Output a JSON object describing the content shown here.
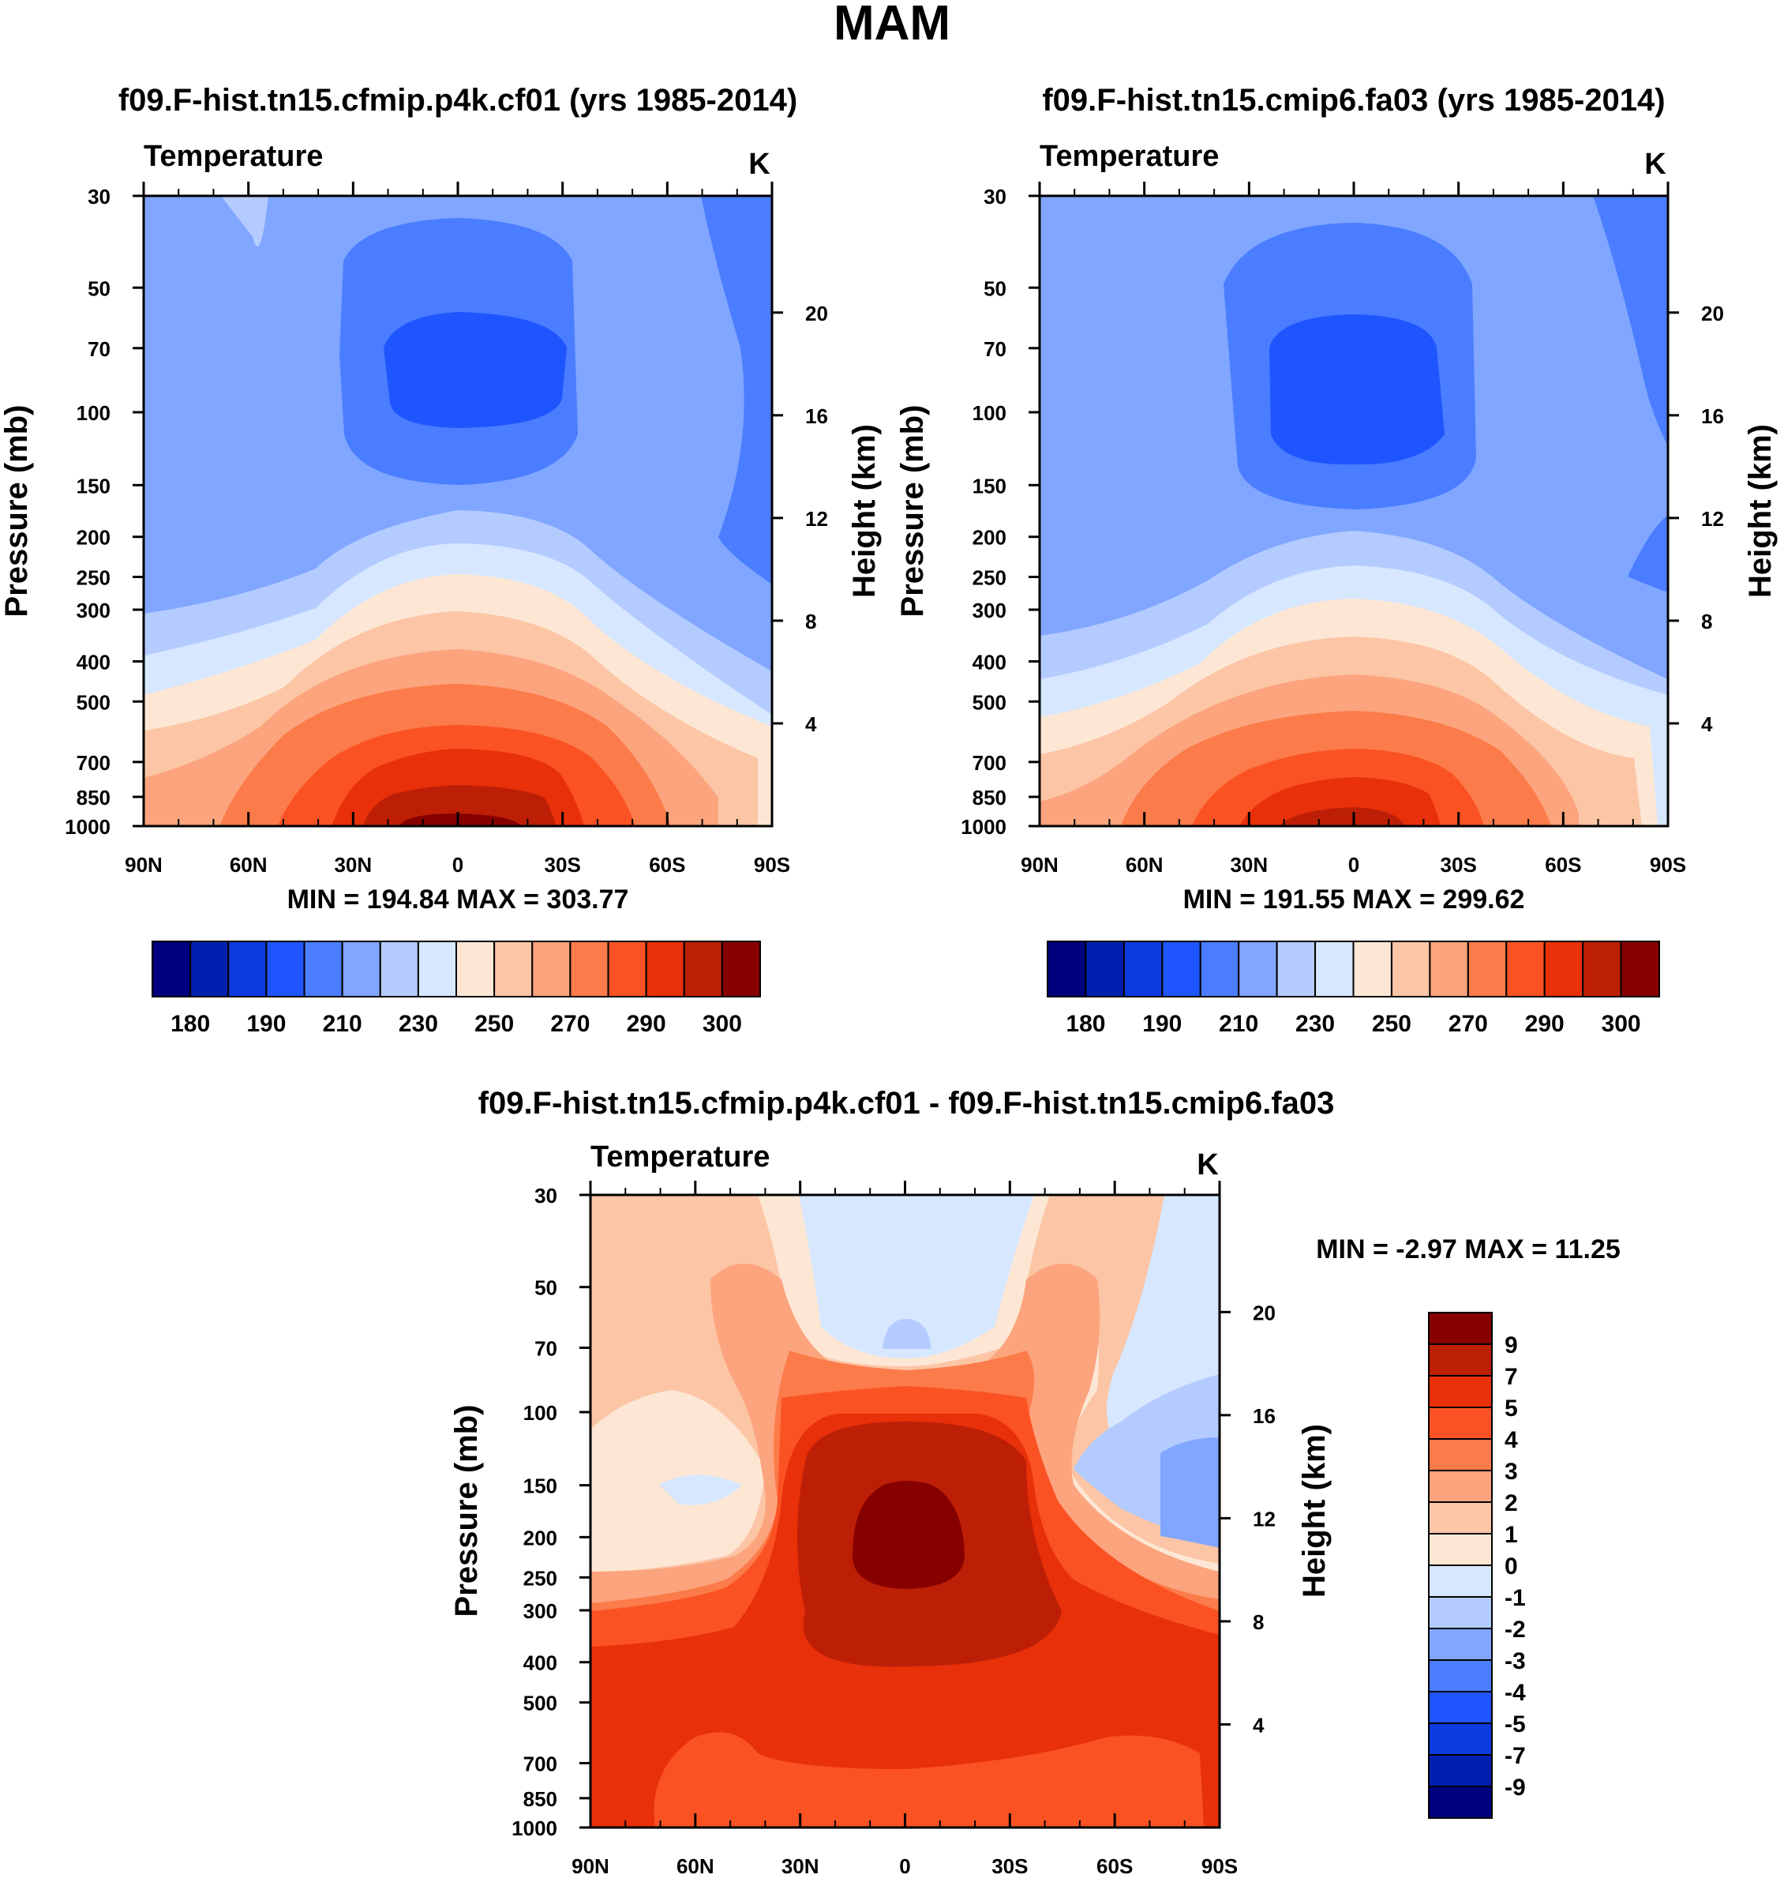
{
  "figure": {
    "title": "MAM",
    "colors": {
      "cold": [
        "#00007e",
        "#0020b0",
        "#0b3be0",
        "#1f55ff",
        "#4a7dff",
        "#80a6ff",
        "#b4cbff",
        "#d6e7ff"
      ],
      "warm": [
        "#fde7d4",
        "#fcc5a6",
        "#fca47d",
        "#fc7b4a",
        "#fb5224",
        "#e8300b",
        "#bd1f06",
        "#870000"
      ]
    }
  },
  "chart_data": [
    {
      "type": "contour",
      "panel": "left",
      "title": "f09.F-hist.tn15.cfmip.p4k.cf01 (yrs 1985-2014)",
      "variable": "Temperature",
      "units": "K",
      "ylabel": "Pressure (mb)",
      "ylabel_right": "Height (km)",
      "x_ticks": [
        "90N",
        "60N",
        "30N",
        "0",
        "30S",
        "60S",
        "90S"
      ],
      "x_range": [
        90,
        -90
      ],
      "y_ticks": [
        30,
        50,
        70,
        100,
        150,
        200,
        250,
        300,
        400,
        500,
        700,
        850,
        1000
      ],
      "y_range": [
        30,
        1000
      ],
      "height_ticks": [
        20,
        16,
        12,
        8,
        4
      ],
      "min_max": "MIN = 194.84  MAX = 303.77",
      "levels": [
        180,
        185,
        190,
        200,
        210,
        220,
        230,
        240,
        250,
        260,
        270,
        280,
        290,
        295,
        300
      ],
      "colorbar_labels": [
        "180",
        "190",
        "210",
        "230",
        "250",
        "270",
        "290",
        "300"
      ],
      "min": 194.84,
      "max": 303.77
    },
    {
      "type": "contour",
      "panel": "right",
      "title": "f09.F-hist.tn15.cmip6.fa03 (yrs 1985-2014)",
      "variable": "Temperature",
      "units": "K",
      "ylabel": "Pressure (mb)",
      "ylabel_right": "Height (km)",
      "x_ticks": [
        "90N",
        "60N",
        "30N",
        "0",
        "30S",
        "60S",
        "90S"
      ],
      "x_range": [
        90,
        -90
      ],
      "y_ticks": [
        30,
        50,
        70,
        100,
        150,
        200,
        250,
        300,
        400,
        500,
        700,
        850,
        1000
      ],
      "y_range": [
        30,
        1000
      ],
      "height_ticks": [
        20,
        16,
        12,
        8,
        4
      ],
      "min_max": "MIN = 191.55  MAX = 299.62",
      "levels": [
        180,
        185,
        190,
        200,
        210,
        220,
        230,
        240,
        250,
        260,
        270,
        280,
        290,
        295,
        300
      ],
      "colorbar_labels": [
        "180",
        "190",
        "210",
        "230",
        "250",
        "270",
        "290",
        "300"
      ],
      "min": 191.55,
      "max": 299.62
    },
    {
      "type": "contour",
      "panel": "diff",
      "title": "f09.F-hist.tn15.cfmip.p4k.cf01 - f09.F-hist.tn15.cmip6.fa03",
      "variable": "Temperature",
      "units": "K",
      "ylabel": "Pressure (mb)",
      "ylabel_right": "Height (km)",
      "x_ticks": [
        "90N",
        "60N",
        "30N",
        "0",
        "30S",
        "60S",
        "90S"
      ],
      "x_range": [
        90,
        -90
      ],
      "y_ticks": [
        30,
        50,
        70,
        100,
        150,
        200,
        250,
        300,
        400,
        500,
        700,
        850,
        1000
      ],
      "y_range": [
        30,
        1000
      ],
      "height_ticks": [
        20,
        16,
        12,
        8,
        4
      ],
      "min_max": "MIN =  -2.97  MAX =  11.25",
      "levels": [
        -9,
        -7,
        -5,
        -4,
        -3,
        -2,
        -1,
        0,
        1,
        2,
        3,
        4,
        5,
        7,
        9
      ],
      "colorbar_labels": [
        "9",
        "7",
        "5",
        "4",
        "3",
        "2",
        "1",
        "0",
        "-1",
        "-2",
        "-3",
        "-4",
        "-5",
        "-7",
        "-9"
      ],
      "min": -2.97,
      "max": 11.25
    }
  ]
}
